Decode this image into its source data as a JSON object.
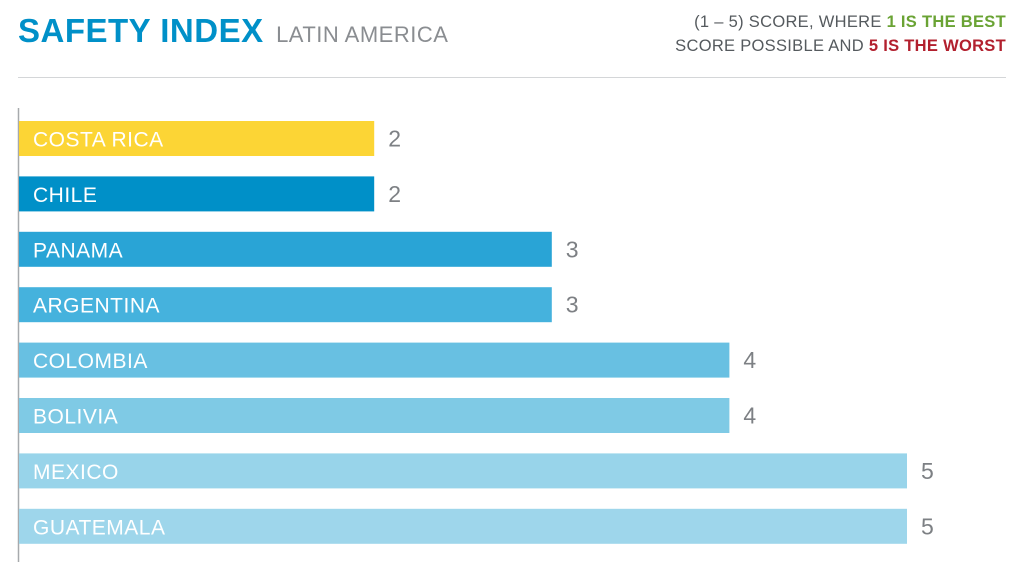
{
  "header": {
    "title": "SAFETY INDEX",
    "subtitle": "LATIN AMERICA",
    "note_line1_prefix": "(1 – 5) SCORE, WHERE ",
    "note_best": "1 IS THE BEST",
    "note_line2_prefix": "SCORE POSSIBLE AND ",
    "note_worst": "5 IS THE WORST"
  },
  "colors": {
    "title": "#0090c8",
    "best": "#6aa334",
    "worst": "#b2202e"
  },
  "chart_data": {
    "type": "bar",
    "orientation": "horizontal",
    "categories": [
      "COSTA RICA",
      "CHILE",
      "PANAMA",
      "ARGENTINA",
      "COLOMBIA",
      "BOLIVIA",
      "MEXICO",
      "GUATEMALA"
    ],
    "values": [
      2,
      2,
      3,
      3,
      4,
      4,
      5,
      5
    ],
    "bar_colors": [
      "#fcd535",
      "#0090c8",
      "#29a4d6",
      "#45b2dd",
      "#68c0e2",
      "#7fcae5",
      "#98d4ea",
      "#9ed6eb"
    ],
    "xlim": [
      0,
      5
    ],
    "grid": false
  }
}
